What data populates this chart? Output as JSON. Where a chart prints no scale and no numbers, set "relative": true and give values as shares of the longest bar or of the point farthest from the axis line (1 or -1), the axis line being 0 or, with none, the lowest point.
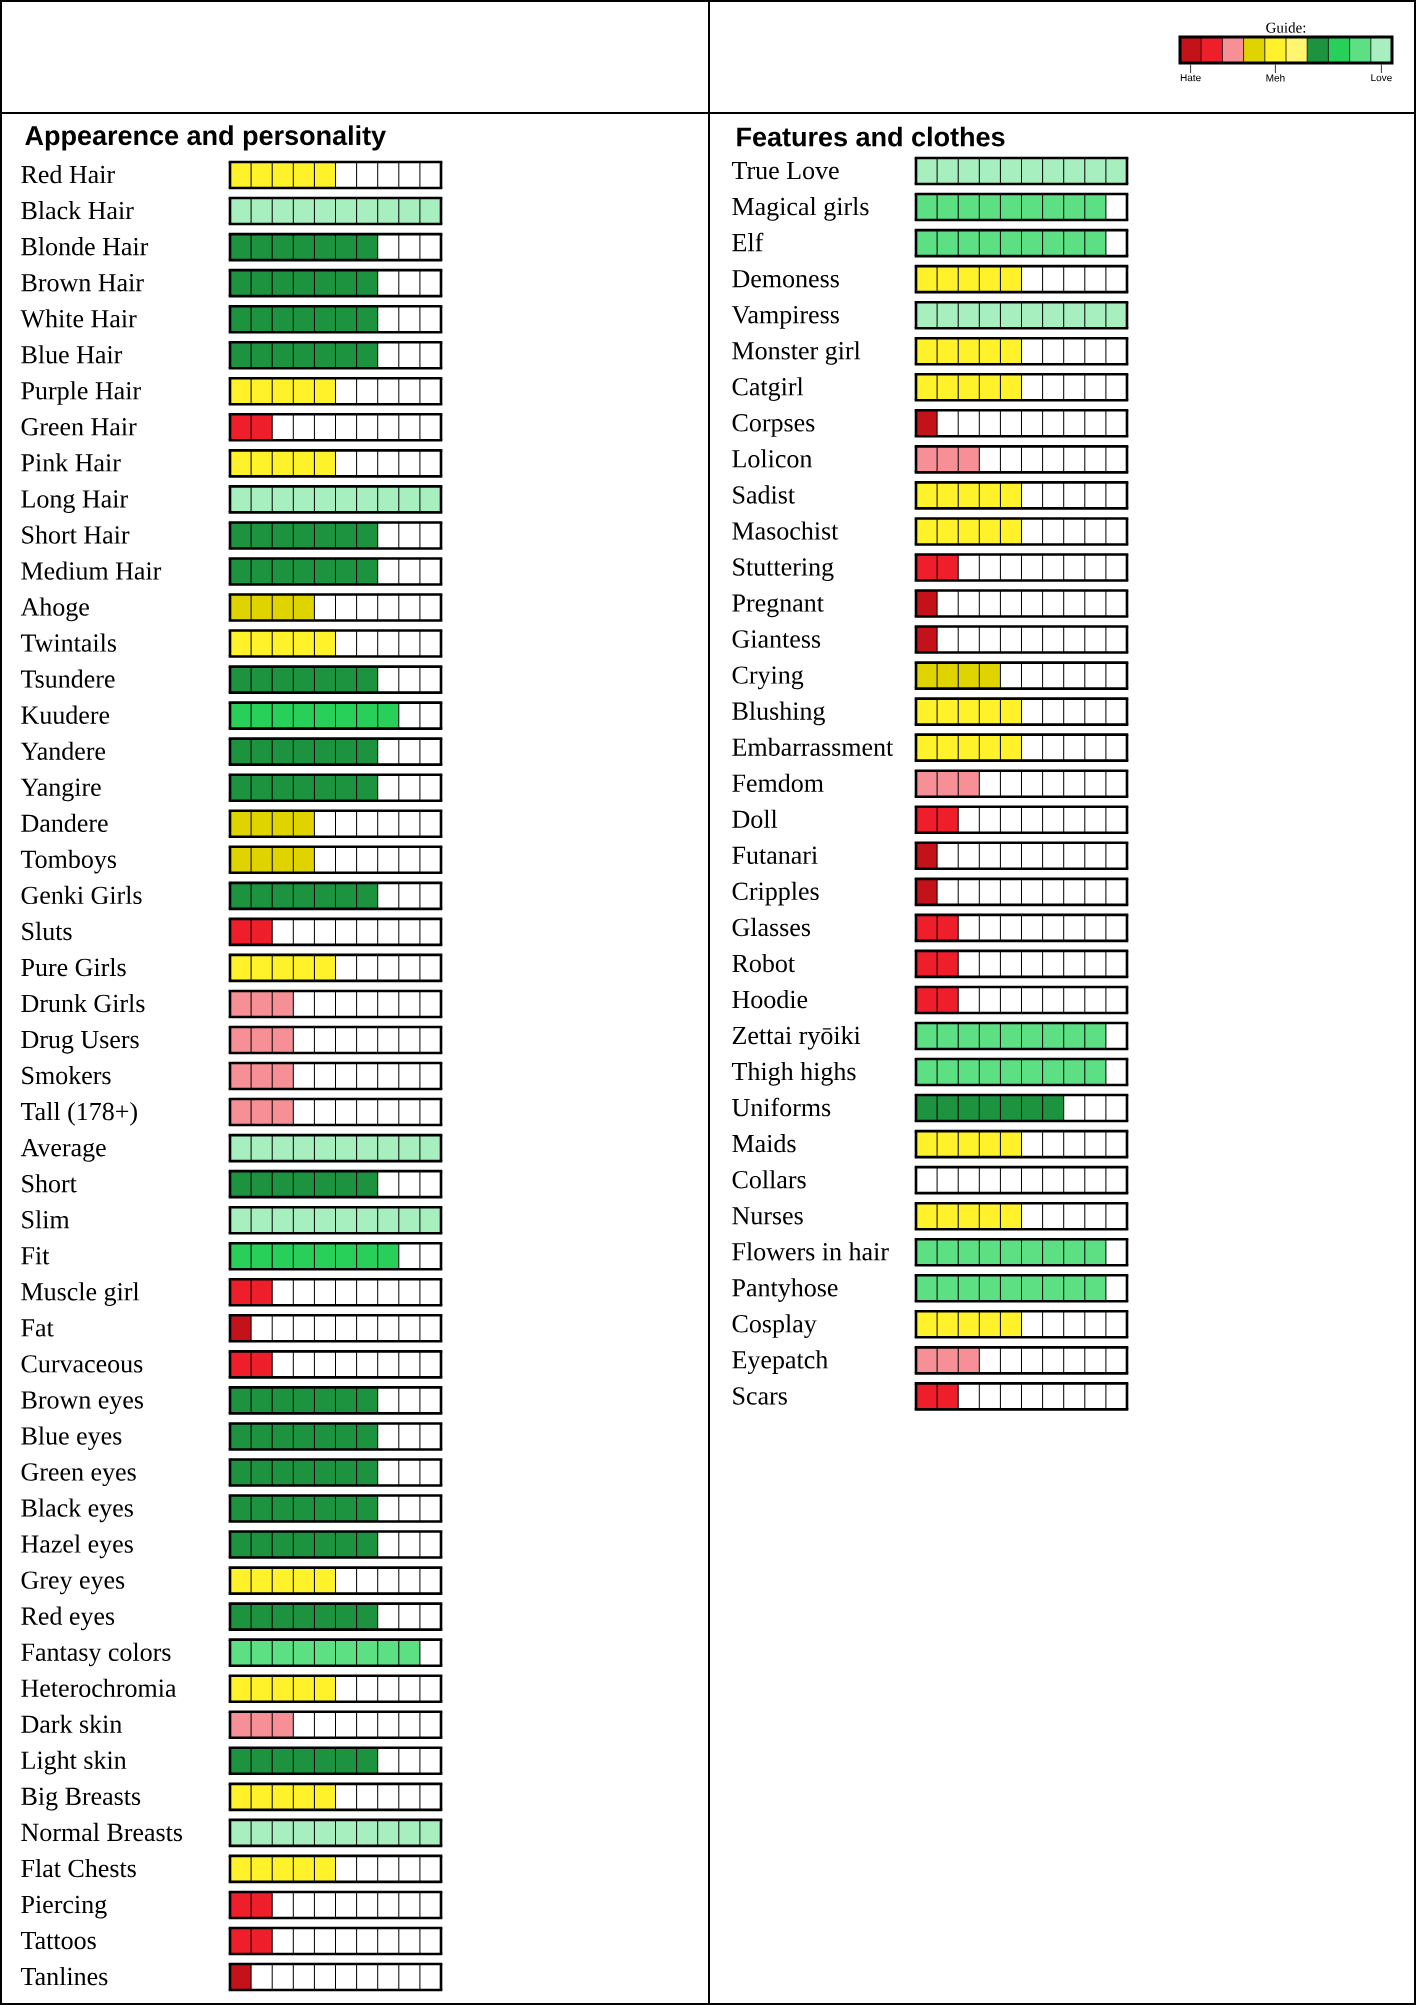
{
  "chart_data": [
    {
      "type": "other",
      "title": "Guide:",
      "annotations": [
        "Hate",
        "Meh",
        "Love"
      ],
      "colors": [
        "#c4121a",
        "#ee1f2a",
        "#f79096",
        "#e0d400",
        "#fff22a",
        "#fff56e",
        "#1d9340",
        "#28d05a",
        "#5ddf84",
        "#a8efbf"
      ]
    },
    {
      "type": "bar",
      "orientation": "horizontal",
      "relative": true,
      "title": "Appearence and personality",
      "categories": [
        "Red Hair",
        "Black Hair",
        "Blonde Hair",
        "Brown Hair",
        "White Hair",
        "Blue Hair",
        "Purple Hair",
        "Green Hair",
        "Pink Hair",
        "Long Hair",
        "Short Hair",
        "Medium Hair",
        "Ahoge",
        "Twintails",
        "Tsundere",
        "Kuudere",
        "Yandere",
        "Yangire",
        "Dandere",
        "Tomboys",
        "Genki Girls",
        "Sluts",
        "Pure Girls",
        "Drunk Girls",
        "Drug Users",
        "Smokers",
        "Tall (178+)",
        "Average",
        "Short",
        "Slim",
        "Fit",
        "Muscle girl",
        "Fat",
        "Curvaceous",
        "Brown eyes",
        "Blue eyes",
        "Green eyes",
        "Black eyes",
        "Hazel eyes",
        "Grey eyes",
        "Red eyes",
        "Fantasy colors",
        "Heterochromia",
        "Dark skin",
        "Light skin",
        "Big Breasts",
        "Normal Breasts",
        "Flat Chests",
        "Piercing",
        "Tattoos",
        "Tanlines"
      ],
      "values": [
        0.5,
        1,
        0.7,
        0.7,
        0.7,
        0.7,
        0.5,
        0.2,
        0.5,
        1,
        0.7,
        0.7,
        0.4,
        0.5,
        0.7,
        0.8,
        0.7,
        0.7,
        0.4,
        0.4,
        0.7,
        0.2,
        0.5,
        0.3,
        0.3,
        0.3,
        0.3,
        1,
        0.7,
        1,
        0.8,
        0.2,
        0.1,
        0.2,
        0.7,
        0.7,
        0.7,
        0.7,
        0.7,
        0.5,
        0.7,
        0.9,
        0.5,
        0.3,
        0.7,
        0.5,
        1,
        0.5,
        0.2,
        0.2,
        0.1
      ],
      "colors": [
        "#fff22a",
        "#a8efbf",
        "#1d9340",
        "#1d9340",
        "#1d9340",
        "#1d9340",
        "#fff22a",
        "#ee1f2a",
        "#fff22a",
        "#a8efbf",
        "#1d9340",
        "#1d9340",
        "#e0d400",
        "#fff22a",
        "#1d9340",
        "#28d05a",
        "#1d9340",
        "#1d9340",
        "#e0d400",
        "#e0d400",
        "#1d9340",
        "#ee1f2a",
        "#fff22a",
        "#f79096",
        "#f79096",
        "#f79096",
        "#f79096",
        "#a8efbf",
        "#1d9340",
        "#a8efbf",
        "#28d05a",
        "#ee1f2a",
        "#c4121a",
        "#ee1f2a",
        "#1d9340",
        "#1d9340",
        "#1d9340",
        "#1d9340",
        "#1d9340",
        "#fff22a",
        "#1d9340",
        "#5ddf84",
        "#fff22a",
        "#f79096",
        "#1d9340",
        "#fff22a",
        "#a8efbf",
        "#fff22a",
        "#ee1f2a",
        "#ee1f2a",
        "#c4121a"
      ]
    },
    {
      "type": "bar",
      "orientation": "horizontal",
      "relative": true,
      "title": "Features and clothes",
      "categories": [
        "True Love",
        "Magical girls",
        "Elf",
        "Demoness",
        "Vampiress",
        "Monster girl",
        "Catgirl",
        "Corpses",
        "Lolicon",
        "Sadist",
        "Masochist",
        "Stuttering",
        "Pregnant",
        "Giantess",
        "Crying",
        "Blushing",
        "Embarrassment",
        "Femdom",
        "Doll",
        "Futanari",
        "Cripples",
        "Glasses",
        "Robot",
        "Hoodie",
        "Zettai ryōiki",
        "Thigh highs",
        "Uniforms",
        "Maids",
        "Collars",
        "Nurses",
        "Flowers in hair",
        "Pantyhose",
        "Cosplay",
        "Eyepatch",
        "Scars"
      ],
      "values": [
        1,
        0.9,
        0.9,
        0.5,
        1,
        0.5,
        0.5,
        0.1,
        0.3,
        0.5,
        0.5,
        0.2,
        0.1,
        0.1,
        0.4,
        0.5,
        0.5,
        0.3,
        0.2,
        0.1,
        0.1,
        0.2,
        0.2,
        0.2,
        0.9,
        0.9,
        0.7,
        0.5,
        0,
        0.5,
        0.9,
        0.9,
        0.5,
        0.3,
        0.2
      ],
      "colors": [
        "#a8efbf",
        "#5ddf84",
        "#5ddf84",
        "#fff22a",
        "#a8efbf",
        "#fff22a",
        "#fff22a",
        "#c4121a",
        "#f79096",
        "#fff22a",
        "#fff22a",
        "#ee1f2a",
        "#c4121a",
        "#c4121a",
        "#e0d400",
        "#fff22a",
        "#fff22a",
        "#f79096",
        "#ee1f2a",
        "#c4121a",
        "#c4121a",
        "#ee1f2a",
        "#ee1f2a",
        "#ee1f2a",
        "#5ddf84",
        "#5ddf84",
        "#1d9340",
        "#fff22a",
        "#ffffff",
        "#fff22a",
        "#5ddf84",
        "#5ddf84",
        "#fff22a",
        "#f79096",
        "#ee1f2a"
      ]
    }
  ]
}
